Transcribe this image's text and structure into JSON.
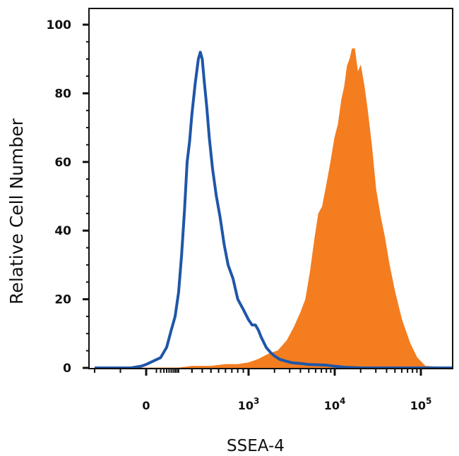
{
  "chart_data": {
    "type": "area",
    "title": "",
    "xlabel": "SSEA-4",
    "ylabel": "Relative Cell Number",
    "ylim": [
      0,
      100
    ],
    "y_ticks": [
      {
        "value": 0,
        "label": "0"
      },
      {
        "value": 20,
        "label": "20"
      },
      {
        "value": 40,
        "label": "40"
      },
      {
        "value": 60,
        "label": "60"
      },
      {
        "value": 80,
        "label": "80"
      },
      {
        "value": 100,
        "label": "100"
      }
    ],
    "x_scale": "biexponential",
    "xlim": [
      -200,
      200000
    ],
    "x_ticks": [
      {
        "value": 0,
        "base": "0",
        "exp": ""
      },
      {
        "value": 1000,
        "base": "10",
        "exp": "3"
      },
      {
        "value": 10000,
        "base": "10",
        "exp": "4"
      },
      {
        "value": 100000,
        "base": "10",
        "exp": "5"
      }
    ],
    "grid": false,
    "legend": "none",
    "series": [
      {
        "style": "line",
        "color": "#1f56a8",
        "x": [
          -200,
          -120,
          -60,
          -20,
          0,
          20,
          40,
          60,
          80,
          100,
          120,
          140,
          160,
          180,
          200,
          230,
          260,
          280,
          300,
          320,
          350,
          380,
          420,
          470,
          520,
          580,
          640,
          720,
          800,
          900,
          1000,
          1100,
          1200,
          1300,
          1400,
          1600,
          1800,
          2000,
          2300,
          2700,
          3200,
          4000,
          5000,
          6500,
          8000,
          10000,
          13000,
          20000,
          50000,
          200000
        ],
        "y": [
          0,
          0,
          0,
          0.5,
          1,
          3,
          6,
          11,
          15,
          22,
          33,
          46,
          60,
          66,
          74,
          83,
          90,
          92,
          90,
          84,
          76,
          67,
          58,
          50,
          44,
          36,
          30,
          26,
          20,
          17,
          14,
          12.5,
          12.5,
          11,
          9,
          6,
          4.5,
          3.5,
          2.5,
          2,
          1.5,
          1.3,
          1,
          0.9,
          0.8,
          0.5,
          0.2,
          0,
          0,
          0
        ]
      },
      {
        "style": "area",
        "color": "#f47d20",
        "x": [
          -200,
          100,
          200,
          400,
          600,
          800,
          1000,
          1300,
          1700,
          2200,
          2800,
          3400,
          4000,
          4600,
          5200,
          5900,
          6500,
          7200,
          8000,
          9000,
          10000,
          11000,
          12000,
          13000,
          14000,
          15000,
          16000,
          17000,
          18500,
          20000,
          22000,
          24000,
          27000,
          30000,
          34000,
          38000,
          43000,
          50000,
          60000,
          75000,
          90000,
          110000,
          200000
        ],
        "y": [
          0,
          0,
          0.5,
          0.5,
          1,
          1,
          1.5,
          2.5,
          4,
          5,
          8,
          12,
          16,
          20,
          28,
          38,
          45,
          47,
          53,
          60,
          67,
          71,
          78,
          82,
          88,
          90,
          93,
          93,
          86,
          88,
          82,
          75,
          64,
          52,
          44,
          38,
          30,
          22,
          14,
          7,
          3,
          0.5,
          0
        ]
      }
    ]
  }
}
